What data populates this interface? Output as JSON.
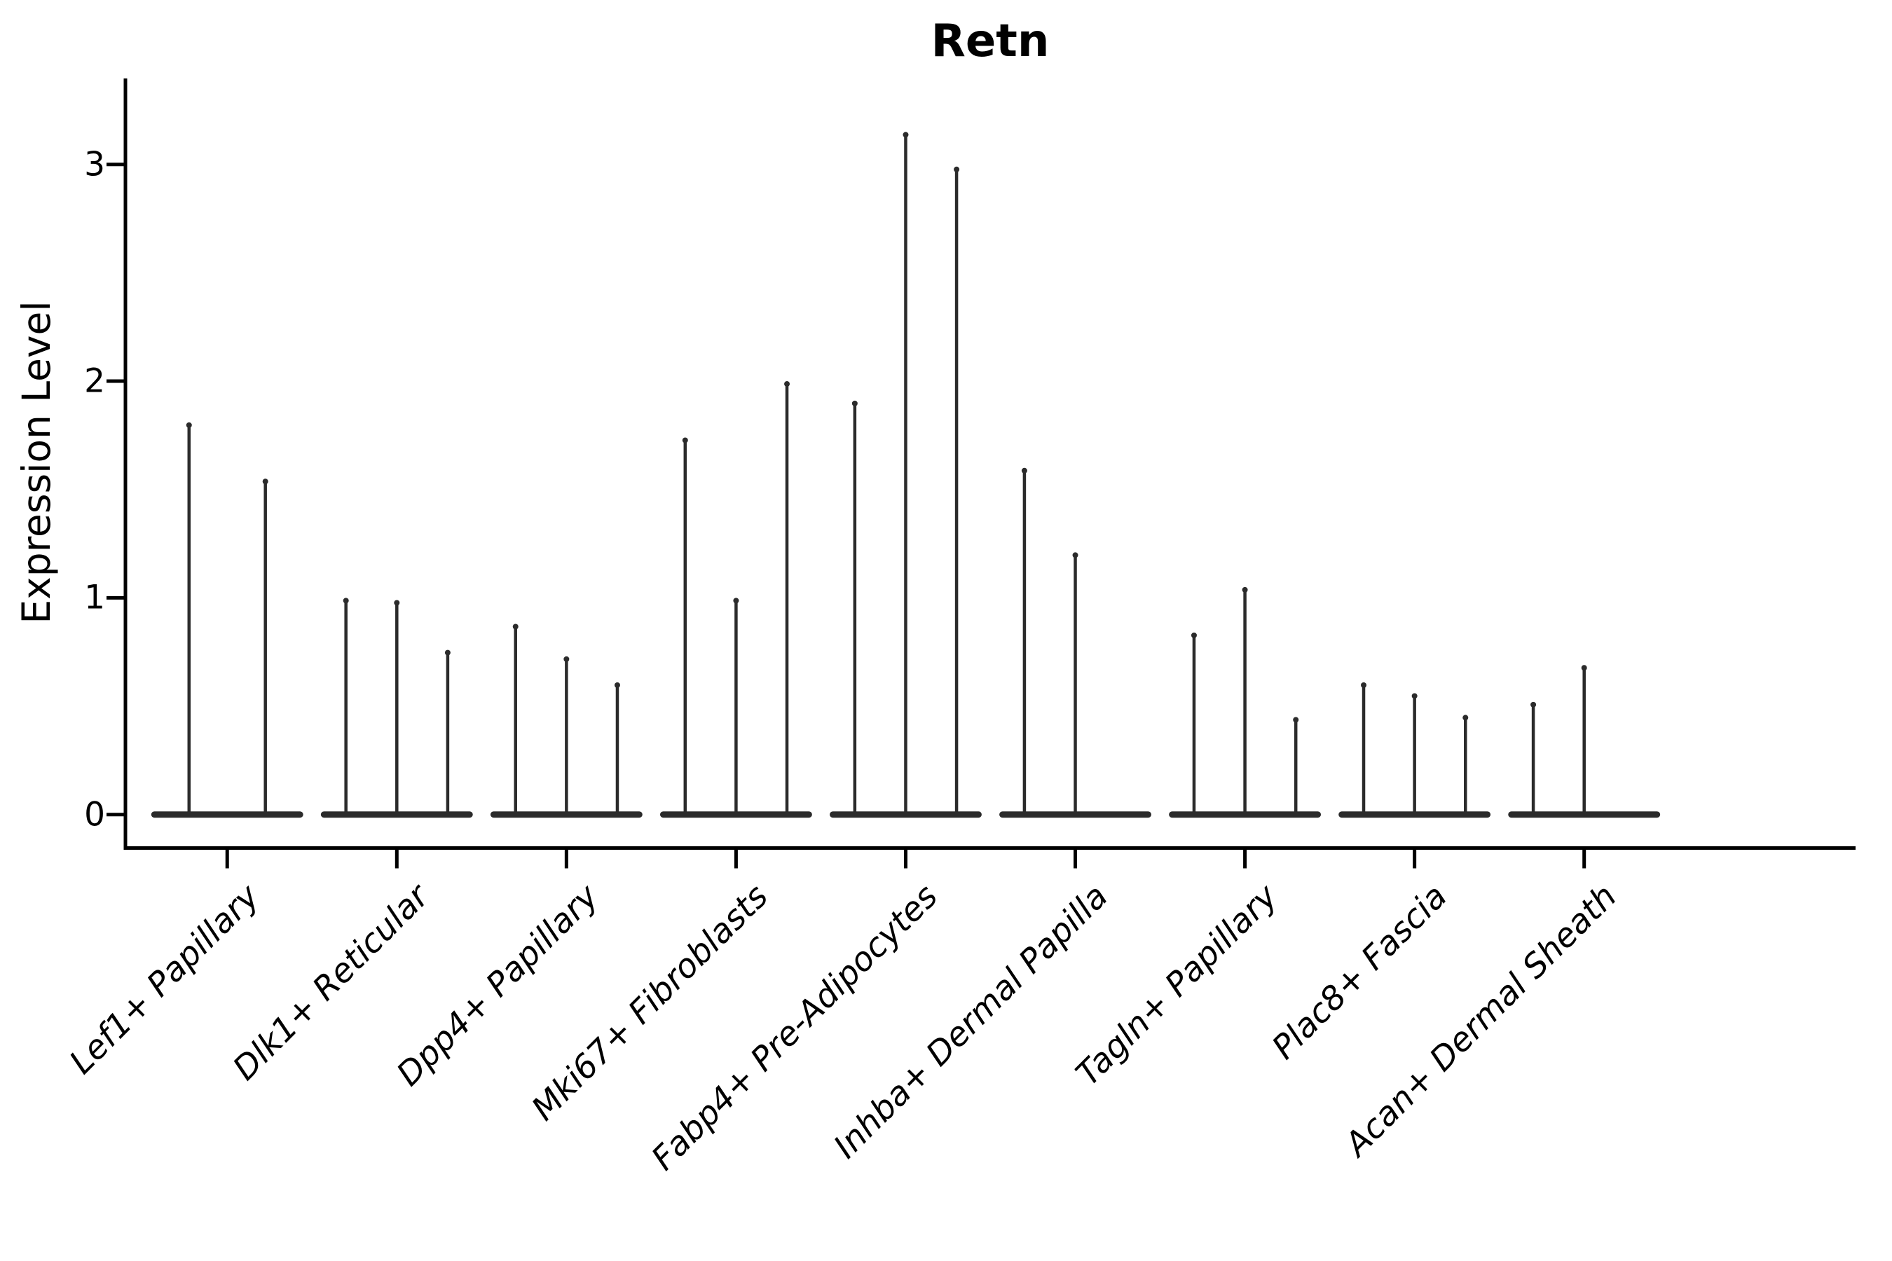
{
  "title": "Retn",
  "chart_data": {
    "type": "violin",
    "title": "Retn",
    "xlabel": "",
    "ylabel": "Expression Level",
    "yticks": [
      0,
      1,
      2,
      3
    ],
    "ylim": [
      0,
      3.3
    ],
    "grid": false,
    "legend": "none",
    "categories": [
      "Lef1+ Papillary",
      "Dlk1+ Reticular",
      "Dpp4+ Papillary",
      "Mki67+ Fibroblasts",
      "Fabp4+ Pre-Adipocytes",
      "Inhba+ Dermal Papilla",
      "Tagln+ Papillary",
      "Plac8+ Fascia",
      "Acan+ Dermal Sheath"
    ],
    "groups": [
      {
        "label": "Lef1+ Papillary",
        "violin_peaks": [
          1.81,
          1.55
        ]
      },
      {
        "label": "Dlk1+ Reticular",
        "violin_peaks": [
          1.0,
          0.99,
          0.76
        ]
      },
      {
        "label": "Dpp4+ Papillary",
        "violin_peaks": [
          0.88,
          0.73,
          0.61
        ]
      },
      {
        "label": "Mki67+ Fibroblasts",
        "violin_peaks": [
          1.74,
          1.0,
          2.0
        ]
      },
      {
        "label": "Fabp4+ Pre-Adipocytes",
        "violin_peaks": [
          1.91,
          3.15,
          2.99
        ]
      },
      {
        "label": "Inhba+ Dermal Papilla",
        "violin_peaks": [
          1.6,
          1.21,
          0
        ]
      },
      {
        "label": "Tagln+ Papillary",
        "violin_peaks": [
          0.84,
          1.05,
          0.45
        ]
      },
      {
        "label": "Plac8+ Fascia",
        "violin_peaks": [
          0.61,
          0.56,
          0.46
        ]
      },
      {
        "label": "Acan+ Dermal Sheath",
        "violin_peaks": [
          0.52,
          0.69,
          0
        ]
      }
    ],
    "colors": {
      "violin_stroke": "#2b2b2b",
      "axis": "#000000",
      "background": "#ffffff"
    }
  }
}
